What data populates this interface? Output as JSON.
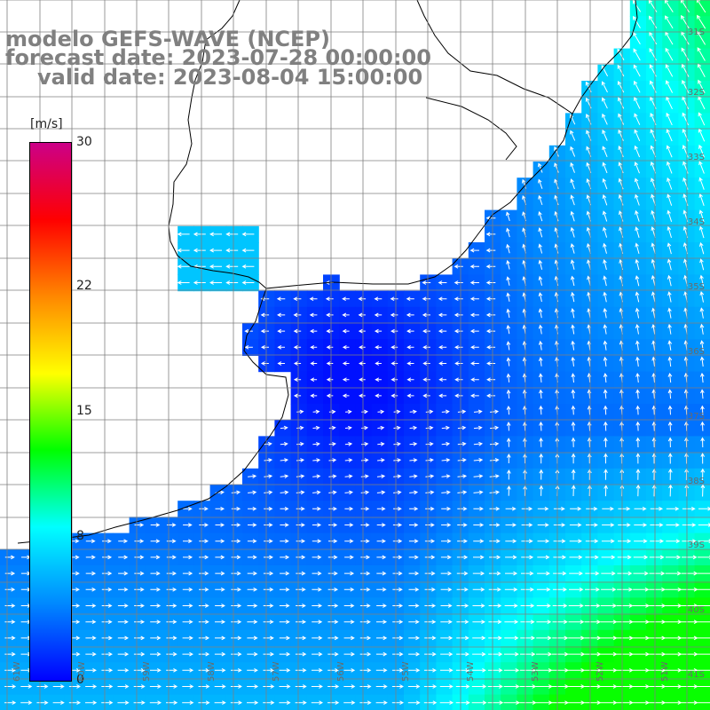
{
  "title": {
    "line1": "modelo GEFS-WAVE (NCEP)",
    "line2": "forecast date: 2023-07-28 00:00:00",
    "line3": "valid date: 2023-08-04 15:00:00",
    "color": "#808080"
  },
  "colorbar": {
    "unit": "[m/s]",
    "ticks": [
      "30",
      "22",
      "15",
      "8",
      "0"
    ],
    "tick_values": [
      30,
      22,
      15,
      8,
      0
    ],
    "min": 0,
    "max": 30,
    "colors": [
      "#0000ff",
      "#0088ff",
      "#00ffff",
      "#00ff00",
      "#ffff00",
      "#ff8800",
      "#ff0000",
      "#cc0088"
    ]
  },
  "lat_labels": [
    "31S",
    "32S",
    "33S",
    "34S",
    "35S",
    "36S",
    "37S",
    "38S",
    "39S",
    "40S",
    "41S"
  ],
  "lon_labels": [
    "61W",
    "60W",
    "59W",
    "58W",
    "57W",
    "56W",
    "55W",
    "54W",
    "53W",
    "52W",
    "51W"
  ],
  "map": {
    "land_color": "#ffffff",
    "coast_color": "#000000",
    "grid_color": "#7f7f7f",
    "arrow_color": "#ffffff",
    "variable": "wind speed and direction"
  }
}
